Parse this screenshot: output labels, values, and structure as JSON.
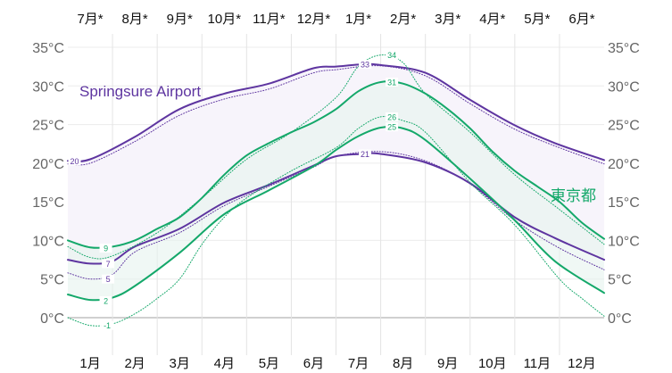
{
  "chart_data": {
    "type": "line",
    "title": "",
    "x_unit": "month index (0 = Jan 1, 12 = Dec 31)",
    "xlim": [
      0,
      12
    ],
    "ylim": [
      -4,
      37
    ],
    "y_ticks": [
      0,
      5,
      10,
      15,
      20,
      25,
      30,
      35
    ],
    "y_tick_labels": [
      "0°C",
      "5°C",
      "10°C",
      "15°C",
      "20°C",
      "25°C",
      "30°C",
      "35°C"
    ],
    "x_tick_labels_bottom": [
      "1月",
      "2月",
      "3月",
      "4月",
      "5月",
      "6月",
      "7月",
      "8月",
      "9月",
      "10月",
      "11月",
      "12月"
    ],
    "x_tick_labels_top": [
      "7月*",
      "8月*",
      "9月*",
      "10月*",
      "11月*",
      "12月*",
      "1月*",
      "2月*",
      "3月*",
      "4月*",
      "5月*",
      "6月*"
    ],
    "grid": true,
    "colors": {
      "springsure": "#5e35a0",
      "tokyo": "#14a86a",
      "springsure_fill": "#f7f4fb",
      "tokyo_fill": "#e6f4ee"
    },
    "series_labels": {
      "springsure": "Springsure Airport",
      "tokyo": "東京都"
    },
    "series": [
      {
        "name": "Springsure high",
        "group": "springsure",
        "style": "solid",
        "x": [
          0,
          0.5,
          1.5,
          2.5,
          3.5,
          4.5,
          5.5,
          6,
          6.6,
          7,
          8,
          9,
          10,
          10.9,
          12
        ],
        "values": [
          20.3,
          20.5,
          23.4,
          27,
          29,
          30.3,
          32.3,
          32.5,
          32.8,
          32.7,
          31.7,
          28.2,
          24.9,
          22.6,
          20.4
        ]
      },
      {
        "name": "Springsure low",
        "group": "springsure",
        "style": "solid",
        "x": [
          0,
          0.5,
          1,
          1.5,
          2.5,
          3.5,
          4.5,
          5.5,
          6,
          6.6,
          7,
          8,
          9,
          10,
          10.9,
          12
        ],
        "values": [
          7.5,
          7,
          7.3,
          9.2,
          11.5,
          14.9,
          17.2,
          19.7,
          20.9,
          21.2,
          21.2,
          20.1,
          17.4,
          13,
          10.3,
          7.5
        ]
      },
      {
        "name": "Springsure high p90",
        "group": "springsure",
        "style": "dotted",
        "x": [
          0,
          0.5,
          1.5,
          2.5,
          3.5,
          4.5,
          5.5,
          6,
          7,
          8,
          9,
          10,
          11,
          12
        ],
        "values": [
          19.9,
          20,
          22.8,
          26.2,
          28.3,
          29.6,
          31.7,
          32.1,
          32.6,
          31.3,
          27.7,
          24.4,
          22,
          19.9
        ]
      },
      {
        "name": "Springsure low p10",
        "group": "springsure",
        "style": "dotted",
        "x": [
          0,
          0.5,
          1,
          1.5,
          2.5,
          3.5,
          4.5,
          5.5,
          6,
          7,
          8,
          9,
          10,
          11,
          12
        ],
        "values": [
          5.8,
          5,
          5.6,
          8.5,
          11,
          14.5,
          17,
          19.5,
          20.9,
          21.5,
          20.3,
          17.3,
          12.6,
          9,
          6.2
        ]
      },
      {
        "name": "Tokyo high",
        "group": "tokyo",
        "style": "solid",
        "x": [
          0,
          0.5,
          1,
          1.5,
          2,
          2.5,
          3,
          3.5,
          4,
          4.5,
          5,
          5.5,
          6,
          6.5,
          7,
          7.5,
          8,
          8.5,
          9,
          9.5,
          10,
          10.5,
          11,
          11.5,
          12
        ],
        "values": [
          10,
          9.1,
          9.2,
          10,
          11.5,
          13,
          15.5,
          18.5,
          21,
          22.6,
          24,
          25.3,
          27,
          29.3,
          30.5,
          30.3,
          29,
          27,
          24.5,
          21.5,
          19,
          17,
          15,
          12.3,
          10.2
        ]
      },
      {
        "name": "Tokyo low",
        "group": "tokyo",
        "style": "solid",
        "x": [
          0,
          0.5,
          1,
          1.5,
          2.5,
          3.5,
          4.5,
          5.5,
          6,
          6.5,
          7,
          7.5,
          8,
          9,
          10,
          10.9,
          12
        ],
        "values": [
          3,
          2.3,
          2.6,
          4.1,
          8.4,
          13.4,
          16.5,
          19.6,
          21.7,
          23.5,
          24.6,
          24.5,
          23,
          18,
          12.6,
          7.3,
          3.2
        ]
      },
      {
        "name": "Tokyo high p90",
        "group": "tokyo",
        "style": "dotted",
        "x": [
          0,
          0.5,
          1,
          2,
          3,
          4,
          5,
          6,
          6.5,
          7,
          7.5,
          8,
          9,
          10,
          11,
          12
        ],
        "values": [
          9.2,
          7.8,
          8,
          11,
          15.5,
          20.5,
          24,
          28.5,
          32.5,
          34,
          33,
          29,
          24,
          18.5,
          14,
          9.5
        ]
      },
      {
        "name": "Tokyo low p10",
        "group": "tokyo",
        "style": "dotted",
        "x": [
          0,
          0.5,
          1,
          1.5,
          2,
          2.5,
          3,
          3.5,
          4,
          5,
          6,
          6.5,
          7,
          7.5,
          8,
          9,
          10,
          11,
          11.5,
          12
        ],
        "values": [
          0,
          -1,
          -0.8,
          0.5,
          2.5,
          5,
          9.5,
          13,
          15.5,
          19,
          22,
          24.5,
          26,
          25.5,
          24,
          17.5,
          12,
          5,
          2.5,
          0.2
        ]
      }
    ],
    "annotations": [
      {
        "text": "20",
        "series": "Springsure high",
        "x": 0.15,
        "y": 20.3
      },
      {
        "text": "7",
        "series": "Springsure low",
        "x": 0.9,
        "y": 7
      },
      {
        "text": "5",
        "series": "Springsure low p10",
        "x": 0.9,
        "y": 5
      },
      {
        "text": "33",
        "series": "Springsure high",
        "x": 6.65,
        "y": 32.8
      },
      {
        "text": "21",
        "series": "Springsure low",
        "x": 6.65,
        "y": 21.2
      },
      {
        "text": "9",
        "series": "Tokyo high",
        "x": 0.85,
        "y": 9
      },
      {
        "text": "2",
        "series": "Tokyo low",
        "x": 0.85,
        "y": 2.2
      },
      {
        "text": "-1",
        "series": "Tokyo low p10",
        "x": 0.88,
        "y": -1
      },
      {
        "text": "34",
        "series": "Tokyo high p90",
        "x": 7.25,
        "y": 34
      },
      {
        "text": "31",
        "series": "Tokyo high",
        "x": 7.25,
        "y": 30.5
      },
      {
        "text": "26",
        "series": "Tokyo low p10",
        "x": 7.25,
        "y": 26
      },
      {
        "text": "25",
        "series": "Tokyo low",
        "x": 7.25,
        "y": 24.7
      }
    ]
  }
}
